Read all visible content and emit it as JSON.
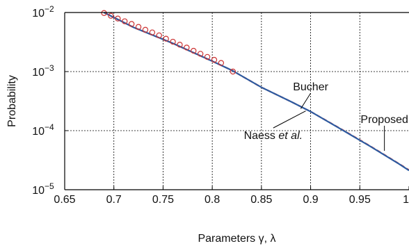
{
  "chart_data": {
    "type": "line",
    "xlabel": "Parameters γ, λ",
    "ylabel": "Probability",
    "xlim": [
      0.65,
      1.0
    ],
    "ylim": [
      1e-05,
      0.01
    ],
    "yscale": "log",
    "grid": true,
    "x_ticks": [
      {
        "value": 0.65,
        "label": "0.65"
      },
      {
        "value": 0.7,
        "label": "0.7"
      },
      {
        "value": 0.75,
        "label": "0.75"
      },
      {
        "value": 0.8,
        "label": "0.8"
      },
      {
        "value": 0.85,
        "label": "0.85"
      },
      {
        "value": 0.9,
        "label": "0.9"
      },
      {
        "value": 0.95,
        "label": "0.95"
      },
      {
        "value": 1.0,
        "label": "1"
      }
    ],
    "y_ticks": [
      {
        "value": 1e-05,
        "base": "10",
        "exp": "−5"
      },
      {
        "value": 0.0001,
        "base": "10",
        "exp": "−4"
      },
      {
        "value": 0.001,
        "base": "10",
        "exp": "−3"
      },
      {
        "value": 0.01,
        "base": "10",
        "exp": "−2"
      }
    ],
    "series": [
      {
        "name": "Bucher",
        "color": "#e0443a",
        "style": "dashed",
        "x": [
          0.69,
          0.72,
          0.76,
          0.8,
          0.82,
          0.85,
          0.88,
          0.9,
          0.93,
          0.96,
          0.99,
          1.0
        ],
        "y": [
          0.01,
          0.0056,
          0.003,
          0.0015,
          0.00105,
          0.00054,
          0.00031,
          0.00021,
          0.000109,
          5.55e-05,
          2.75e-05,
          2.15e-05
        ]
      },
      {
        "name": "Proposed",
        "color": "#2c5aa0",
        "style": "solid",
        "x": [
          0.69,
          0.72,
          0.76,
          0.8,
          0.82,
          0.85,
          0.88,
          0.9,
          0.93,
          0.96,
          0.99,
          1.0
        ],
        "y": [
          0.01,
          0.0056,
          0.003,
          0.0015,
          0.00105,
          0.00054,
          0.00031,
          0.00021,
          0.000108,
          5.5e-05,
          2.72e-05,
          2.12e-05
        ]
      },
      {
        "name": "Naess et al.",
        "color": "#cc3333",
        "marker": "circle",
        "x": [
          0.69,
          0.697,
          0.704,
          0.711,
          0.718,
          0.725,
          0.732,
          0.739,
          0.746,
          0.753,
          0.76,
          0.767,
          0.774,
          0.781,
          0.788,
          0.795,
          0.802,
          0.809,
          0.821
        ],
        "y": [
          0.0098,
          0.0088,
          0.0079,
          0.0071,
          0.0064,
          0.0057,
          0.0051,
          0.0046,
          0.0041,
          0.0036,
          0.0032,
          0.00285,
          0.00255,
          0.00225,
          0.002,
          0.00177,
          0.00158,
          0.0014,
          0.001
        ]
      }
    ],
    "annotations": [
      {
        "label_main": "Bucher",
        "label_italic": "",
        "text_x": 0.9,
        "text_y": 0.00048,
        "point_x": 0.89,
        "point_y": 0.000235
      },
      {
        "label_main": "Proposed",
        "label_italic": "",
        "text_x": 0.975,
        "text_y": 0.000135,
        "point_x": 0.975,
        "point_y": 4.55e-05
      },
      {
        "label_main": "Naess ",
        "label_italic": "et al.",
        "text_x": 0.862,
        "text_y": 7.2e-05,
        "point_x": 0.895,
        "point_y": 0.000215
      }
    ]
  }
}
